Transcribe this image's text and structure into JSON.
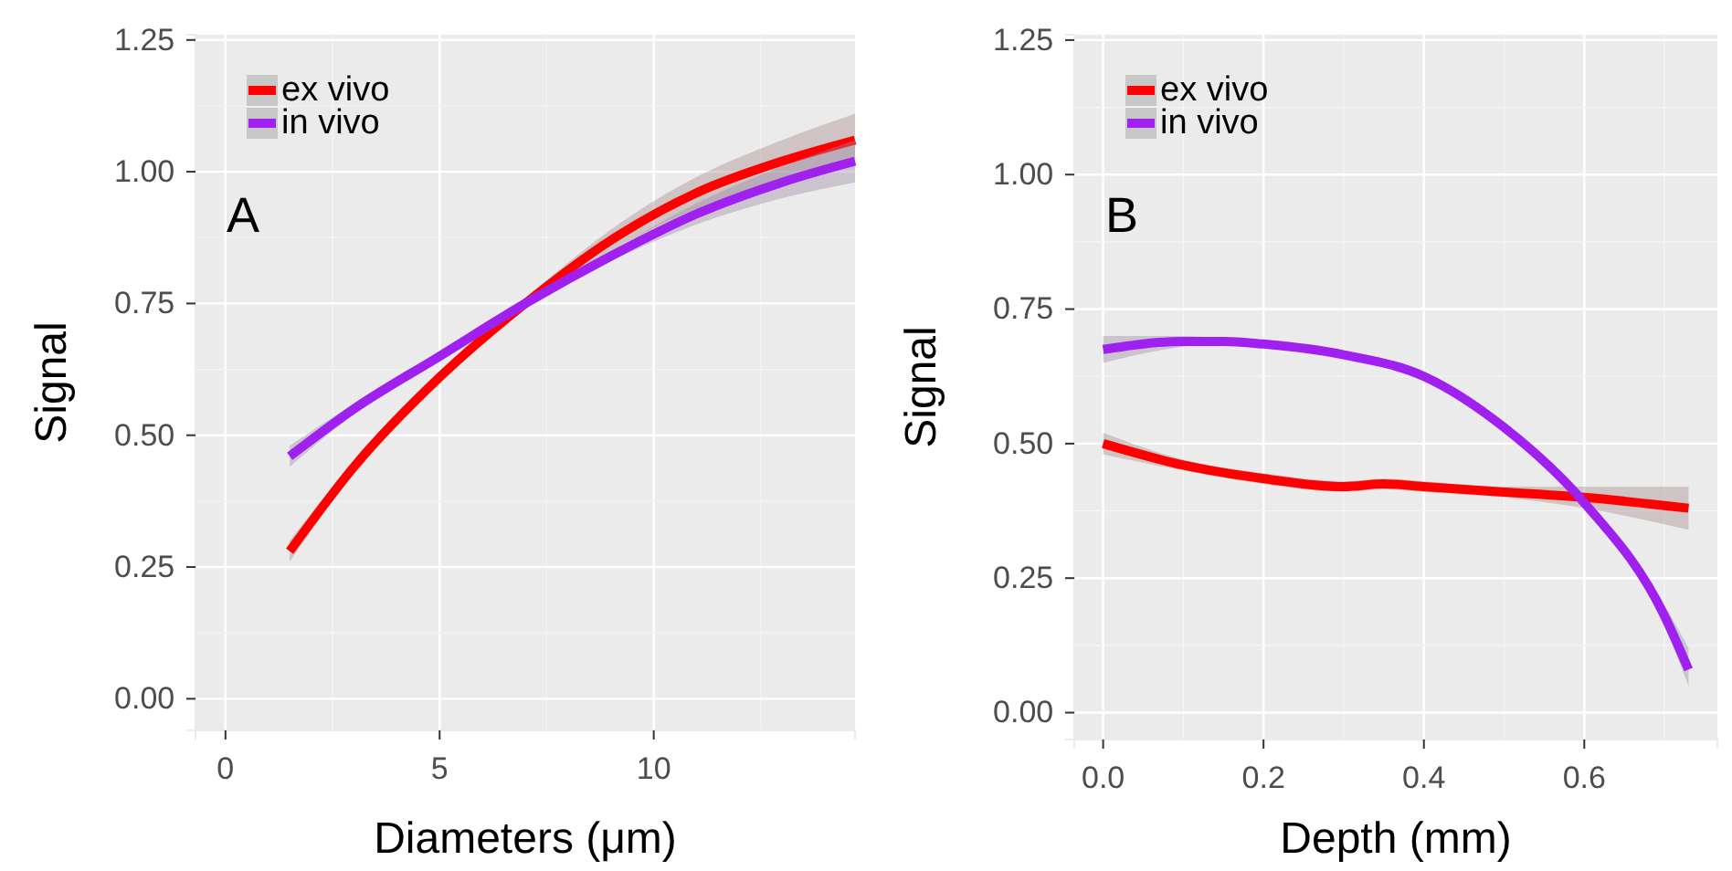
{
  "chart_data": [
    {
      "type": "line",
      "xlabel": "Diameters (μm)",
      "ylabel": "Signal",
      "xlim": [
        -0.7,
        14.7
      ],
      "xticks": [
        0,
        5,
        10
      ],
      "ylim": [
        -0.06,
        1.26
      ],
      "yticks": [
        {
          "value": 0,
          "label": "0.00"
        },
        {
          "value": 0.25,
          "label": "0.25"
        },
        {
          "value": 0.5,
          "label": "0.50"
        },
        {
          "value": 0.75,
          "label": "0.75"
        },
        {
          "value": 1,
          "label": "1.00"
        },
        {
          "value": 1.25,
          "label": "1.25"
        }
      ],
      "grid": true,
      "legend": "top left",
      "annotations": [
        "A"
      ],
      "series": [
        {
          "name": "ex vivo",
          "color": "#ff0000",
          "x": [
            1.5,
            3,
            5,
            7,
            9,
            11,
            13,
            14.7
          ],
          "values": [
            0.28,
            0.44,
            0.61,
            0.75,
            0.87,
            0.96,
            1.02,
            1.06
          ],
          "lower": [
            0.26,
            0.43,
            0.6,
            0.74,
            0.85,
            0.93,
            0.98,
            1.01
          ],
          "upper": [
            0.3,
            0.45,
            0.62,
            0.76,
            0.89,
            0.99,
            1.06,
            1.11
          ]
        },
        {
          "name": "in vivo",
          "color": "#a020f0",
          "x": [
            1.5,
            3,
            5,
            7,
            9,
            11,
            13,
            14.7
          ],
          "values": [
            0.46,
            0.55,
            0.65,
            0.75,
            0.84,
            0.92,
            0.98,
            1.02
          ],
          "lower": [
            0.44,
            0.54,
            0.64,
            0.74,
            0.83,
            0.9,
            0.95,
            0.98
          ],
          "upper": [
            0.48,
            0.56,
            0.66,
            0.76,
            0.85,
            0.94,
            1.01,
            1.06
          ]
        }
      ]
    },
    {
      "type": "line",
      "xlabel": "Depth (mm)",
      "ylabel": "Signal",
      "xlim": [
        -0.036,
        0.766
      ],
      "xticks": [
        {
          "value": 0,
          "label": "0.0"
        },
        0.2,
        0.4,
        0.6
      ],
      "ylim": [
        -0.05,
        1.26
      ],
      "yticks": [
        {
          "value": 0,
          "label": "0.00"
        },
        {
          "value": 0.25,
          "label": "0.25"
        },
        {
          "value": 0.5,
          "label": "0.50"
        },
        {
          "value": 0.75,
          "label": "0.75"
        },
        {
          "value": 1,
          "label": "1.00"
        },
        {
          "value": 1.25,
          "label": "1.25"
        }
      ],
      "grid": true,
      "legend": "top left",
      "annotations": [
        "B"
      ],
      "series": [
        {
          "name": "ex vivo",
          "color": "#ff0000",
          "x": [
            0,
            0.1,
            0.2,
            0.3,
            0.35,
            0.4,
            0.5,
            0.6,
            0.73
          ],
          "values": [
            0.5,
            0.46,
            0.435,
            0.42,
            0.425,
            0.42,
            0.41,
            0.4,
            0.38
          ],
          "lower": [
            0.48,
            0.45,
            0.425,
            0.41,
            0.415,
            0.41,
            0.4,
            0.38,
            0.34
          ],
          "upper": [
            0.52,
            0.47,
            0.445,
            0.43,
            0.435,
            0.43,
            0.42,
            0.42,
            0.42
          ]
        },
        {
          "name": "in vivo",
          "color": "#a020f0",
          "x": [
            0,
            0.1,
            0.15,
            0.2,
            0.3,
            0.4,
            0.5,
            0.6,
            0.7,
            0.73
          ],
          "values": [
            0.675,
            0.69,
            0.69,
            0.685,
            0.665,
            0.625,
            0.53,
            0.39,
            0.18,
            0.08
          ],
          "lower": [
            0.65,
            0.68,
            0.685,
            0.68,
            0.66,
            0.62,
            0.525,
            0.38,
            0.16,
            0.05
          ],
          "upper": [
            0.7,
            0.7,
            0.695,
            0.69,
            0.67,
            0.63,
            0.535,
            0.4,
            0.2,
            0.12
          ]
        }
      ]
    }
  ]
}
